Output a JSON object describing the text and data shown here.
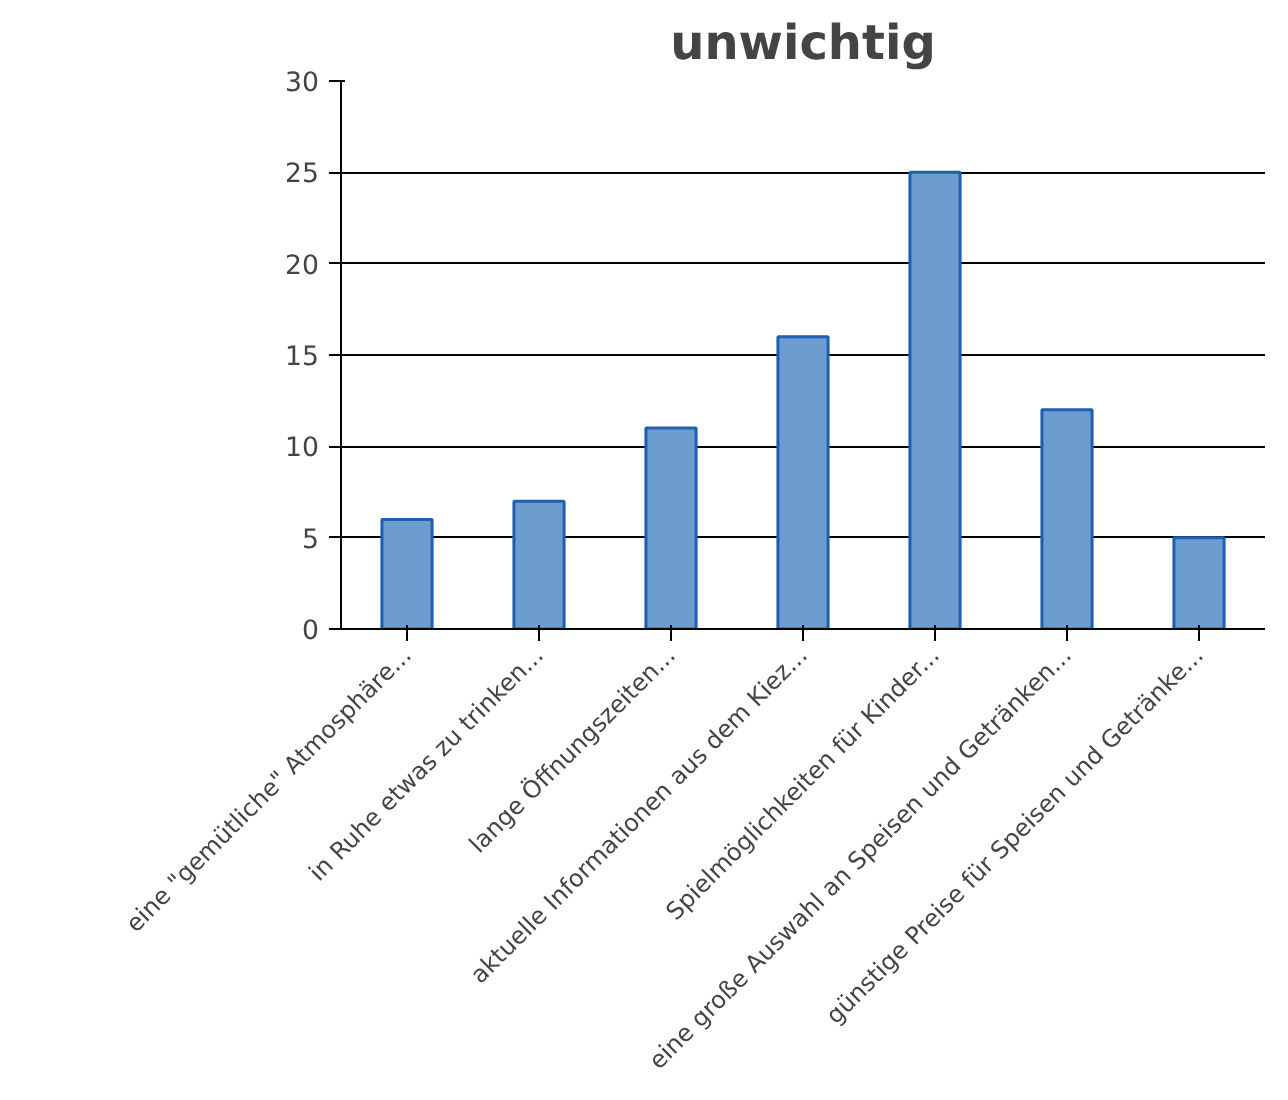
{
  "chart_data": {
    "type": "bar",
    "title": "unwichtig",
    "categories": [
      "eine \"gemütliche\" Atmosphäre...",
      "in Ruhe etwas zu trinken...",
      "lange Öffnungszeiten...",
      "aktuelle Informationen aus dem Kiez...",
      "Spielmöglichkeiten für Kinder...",
      "eine große Auswahl an Speisen und Getränken...",
      "günstige Preise für Speisen und Getränke..."
    ],
    "values": [
      6,
      7,
      11,
      16,
      25,
      12,
      5
    ],
    "color": "#6d9ccf",
    "ylim": [
      0,
      30
    ],
    "yticks": [
      0,
      5,
      10,
      15,
      20,
      25,
      30
    ],
    "grid": "y"
  }
}
